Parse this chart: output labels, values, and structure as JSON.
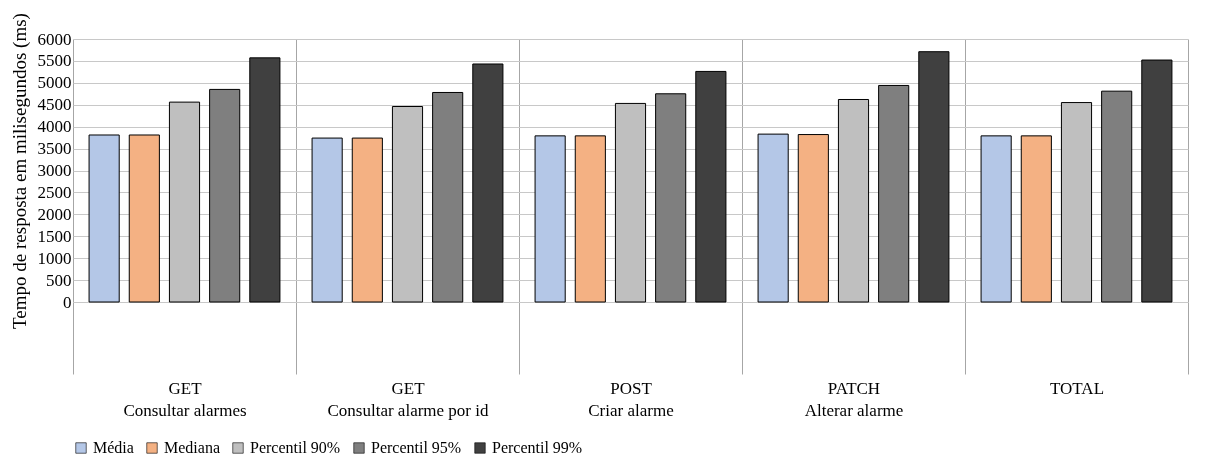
{
  "chart_data": {
    "type": "bar",
    "ylabel": "Tempo de resposta em milisegundos (ms)",
    "categories": [
      "GET\nConsultar alarmes",
      "GET\nConsultar alarme por id",
      "POST\nCriar alarme",
      "PATCH\nAlterar alarme",
      "TOTAL"
    ],
    "series": [
      {
        "name": "Média",
        "color": "#b4c7e7",
        "values": [
          3810,
          3740,
          3790,
          3830,
          3790
        ]
      },
      {
        "name": "Mediana",
        "color": "#f4b183",
        "values": [
          3810,
          3740,
          3790,
          3820,
          3790
        ]
      },
      {
        "name": "Percentil 90%",
        "color": "#bfbfbf",
        "values": [
          4560,
          4460,
          4530,
          4620,
          4550
        ]
      },
      {
        "name": "Percentil 95%",
        "color": "#7f7f7f",
        "values": [
          4850,
          4780,
          4750,
          4940,
          4810
        ]
      },
      {
        "name": "Percentil 99%",
        "color": "#404040",
        "values": [
          5570,
          5430,
          5260,
          5710,
          5520
        ]
      }
    ],
    "ylim": [
      0,
      6000
    ],
    "yticks": [
      0,
      500,
      1000,
      1500,
      2000,
      2500,
      3000,
      3500,
      4000,
      4500,
      5000,
      5500,
      6000
    ],
    "grid": "y",
    "legend": "bottom"
  }
}
